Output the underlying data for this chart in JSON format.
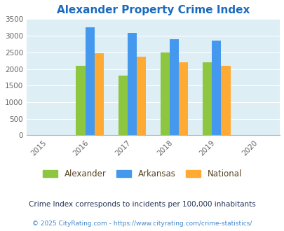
{
  "title": "Alexander Property Crime Index",
  "years": [
    2016,
    2017,
    2018,
    2019
  ],
  "alexander": [
    2100,
    1800,
    2500,
    2200
  ],
  "arkansas": [
    3250,
    3075,
    2900,
    2850
  ],
  "national": [
    2475,
    2375,
    2200,
    2100
  ],
  "colors": {
    "alexander": "#8dc63f",
    "arkansas": "#4499ee",
    "national": "#ffaa33"
  },
  "xlim": [
    2014.5,
    2020.5
  ],
  "ylim": [
    0,
    3500
  ],
  "yticks": [
    0,
    500,
    1000,
    1500,
    2000,
    2500,
    3000,
    3500
  ],
  "xticks": [
    2015,
    2016,
    2017,
    2018,
    2019,
    2020
  ],
  "title_color": "#1a6abf",
  "title_fontsize": 11,
  "bg_color": "#ddeef5",
  "legend_text_color": "#554422",
  "footnote1": "Crime Index corresponds to incidents per 100,000 inhabitants",
  "footnote2": "© 2025 CityRating.com - https://www.cityrating.com/crime-statistics/",
  "footnote1_color": "#223355",
  "footnote2_color": "#4488cc",
  "bar_width": 0.22
}
